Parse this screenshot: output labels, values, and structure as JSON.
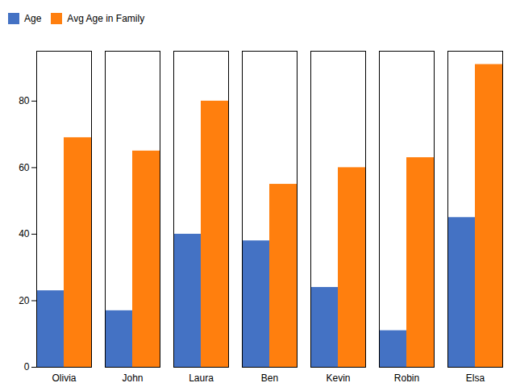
{
  "chart_data": {
    "type": "bar",
    "categories": [
      "Olivia",
      "John",
      "Laura",
      "Ben",
      "Kevin",
      "Robin",
      "Elsa"
    ],
    "series": [
      {
        "name": "Age",
        "color": "#4472C4",
        "values": [
          23,
          17,
          40,
          38,
          24,
          11,
          45
        ]
      },
      {
        "name": "Avg Age in Family",
        "color": "#FF7F0E",
        "values": [
          69,
          65,
          80,
          55,
          60,
          63,
          91
        ]
      }
    ],
    "ylim": [
      0,
      95
    ],
    "yticks": [
      0,
      20,
      40,
      60,
      80
    ],
    "grid": false,
    "legend": "upper left"
  }
}
